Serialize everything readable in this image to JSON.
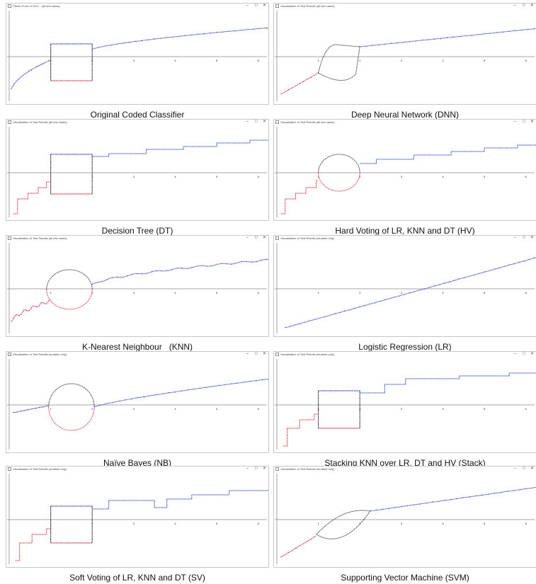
{
  "colors": {
    "blue": "#2b3fd6",
    "red": "#e0283a",
    "dark": "#2a2a3a",
    "axis": "#888888",
    "text": "#222222"
  },
  "window_controls": {
    "minimize": "–",
    "maximize": "☐",
    "close": "✕"
  },
  "x_tick_labels": [
    "1",
    "2",
    "3",
    "4",
    "5",
    "6"
  ],
  "panels": [
    {
      "id": "occ",
      "window_title": "Pareto Front of Occ? - (all test cases)",
      "caption": "Original Coded Classifier"
    },
    {
      "id": "dnn",
      "window_title": "Visualisation of Test Results (all test cases)",
      "caption": "Deep Neural Network (DNN)"
    },
    {
      "id": "dt",
      "window_title": "Visualisation of Test Results (all test cases)",
      "caption": "Decision Tree (DT)"
    },
    {
      "id": "hv",
      "window_title": "Visualisation of Test Results (all test cases)",
      "caption": "Hard Voting of LR, KNN and DT (HV)"
    },
    {
      "id": "knn",
      "window_title": "Visualisation of Test Results (all test cases)",
      "caption": "K-Nearest Neighbour   (KNN)"
    },
    {
      "id": "lr",
      "window_title": "Visualisation of Test Results (mutants only)",
      "caption": "Logistic Regression (LR)"
    },
    {
      "id": "nb",
      "window_title": "Visualisation of Test Results (mutants only)",
      "caption": "Naïve Bayes (NB)"
    },
    {
      "id": "stack",
      "window_title": "Visualisation of Test Results (mutants only)",
      "caption": "Stacking KNN over LR, DT and HV (Stack)"
    },
    {
      "id": "sv",
      "window_title": "Visualisation of Test Results (mutants only)",
      "caption": "Soft Voting of LR, KNN and DT (SV)"
    },
    {
      "id": "svm",
      "window_title": "Visualisation of Test Results (mutants only)",
      "caption": "Supporting Vector Machine (SVM)"
    }
  ]
}
